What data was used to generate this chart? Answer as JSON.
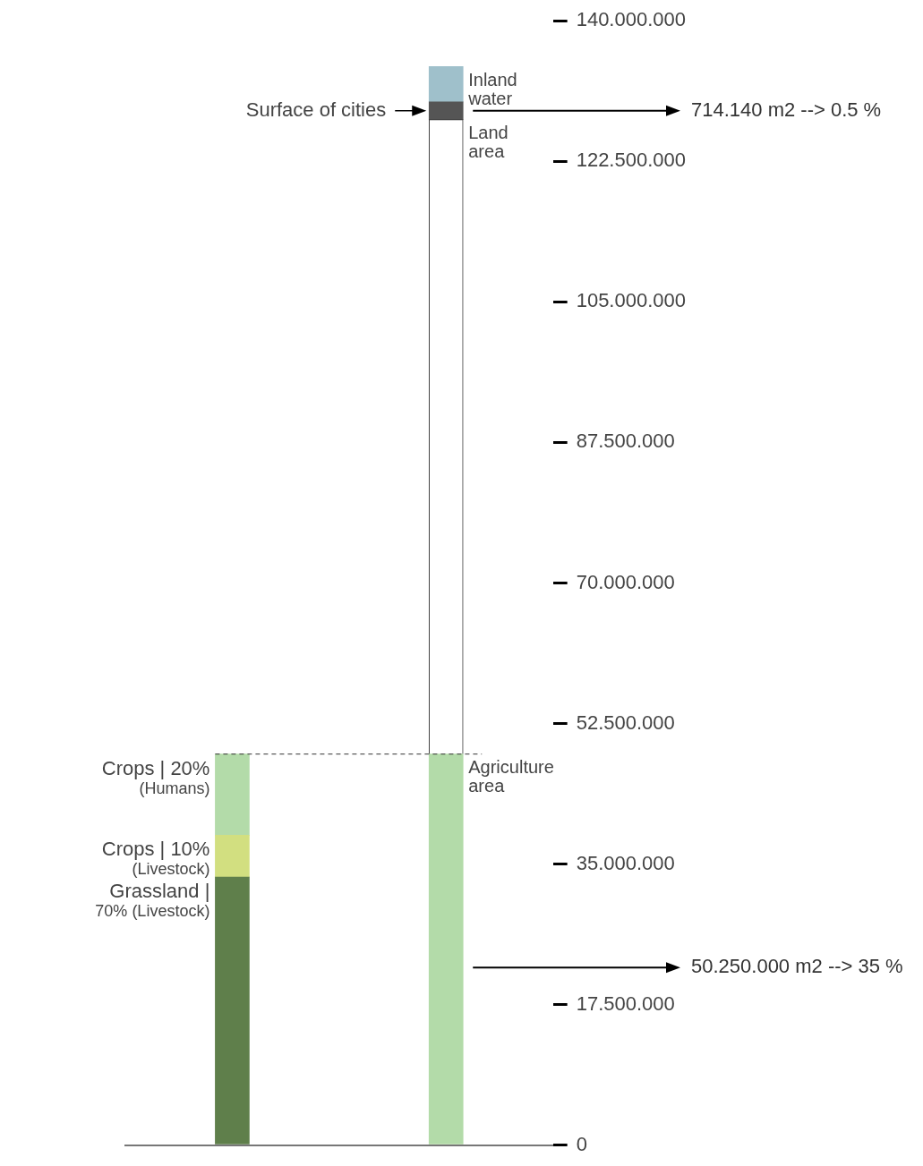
{
  "chart_data": {
    "type": "bar",
    "stacked": true,
    "categories": [
      null,
      null
    ],
    "series": [
      {
        "name": "Grassland | 70% (Livestock)",
        "color": "#5f7f4b",
        "values": [
          33400000,
          null
        ]
      },
      {
        "name": "Crops | 10% (Livestock)",
        "color": "#d2df80",
        "values": [
          5200000,
          null
        ]
      },
      {
        "name": "Crops | 20% (Humans)",
        "color": "#b3dba9",
        "values": [
          10100000,
          null
        ]
      },
      {
        "name": "Agriculture area",
        "color": "#b3dba9",
        "values": [
          null,
          48700000
        ]
      },
      {
        "name": "Land area",
        "color": "#ffffff",
        "values": [
          null,
          79000000
        ]
      },
      {
        "name": "Surface of cities",
        "color": "#555555",
        "values": [
          null,
          2200000
        ]
      },
      {
        "name": "Inland water",
        "color": "#9fc0cb",
        "values": [
          null,
          4400000
        ]
      }
    ],
    "ylim": [
      0,
      140000000
    ],
    "yticks": [
      0,
      {
        "value": 17500000,
        "label": "17.500.000"
      },
      {
        "value": 35000000,
        "label": "35.000.000"
      },
      {
        "value": 52500000,
        "label": "52.500.000"
      },
      {
        "value": 70000000,
        "label": "70.000.000"
      },
      {
        "value": 87500000,
        "label": "87.500.000"
      },
      {
        "value": 105000000,
        "label": "105.000.000"
      },
      {
        "value": 122500000,
        "label": "122.500.000"
      },
      {
        "value": 140000000,
        "label": "140.000.000"
      }
    ],
    "ref_lines": [
      {
        "axis": "y",
        "value": 48700000,
        "line_style": "dashed",
        "color": "#333333"
      }
    ],
    "annotations": [
      "714.140 m2 --> 0.5 %",
      "50.250.000 m2 --> 35 %"
    ],
    "grid": false,
    "legend": false
  }
}
